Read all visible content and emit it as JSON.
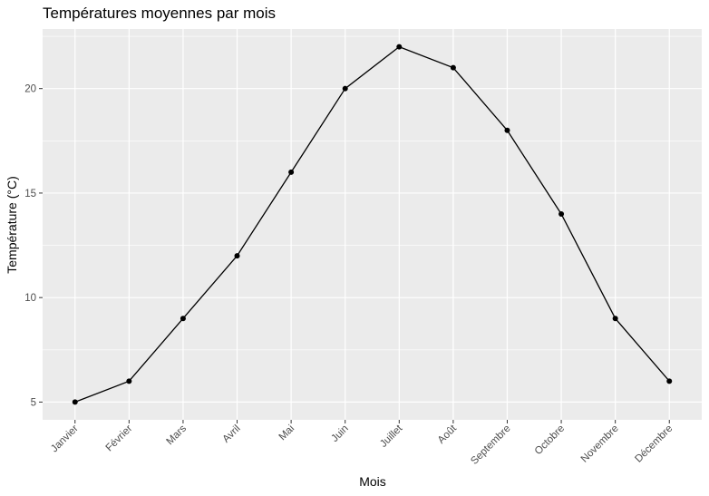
{
  "chart_data": {
    "type": "line",
    "title": "Températures moyennes par mois",
    "xlabel": "Mois",
    "ylabel": "Température (°C)",
    "categories": [
      "Janvier",
      "Février",
      "Mars",
      "Avril",
      "Mai",
      "Juin",
      "Juillet",
      "Août",
      "Septembre",
      "Octobre",
      "Novembre",
      "Décembre"
    ],
    "values": [
      5,
      6,
      9,
      12,
      16,
      20,
      22,
      21,
      18,
      14,
      9,
      6
    ],
    "ylim": [
      4.15,
      22.85
    ],
    "yticks": [
      5,
      10,
      15,
      20
    ],
    "yticks_labels": [
      "5",
      "10",
      "15",
      "20"
    ],
    "grid": true,
    "legend": "none",
    "colors": {
      "panel_background": "#ebebeb",
      "grid_major": "#ffffff",
      "line": "#000000",
      "point": "#000000",
      "tick_label": "#4d4d4d",
      "tick_mark": "#333333"
    }
  }
}
